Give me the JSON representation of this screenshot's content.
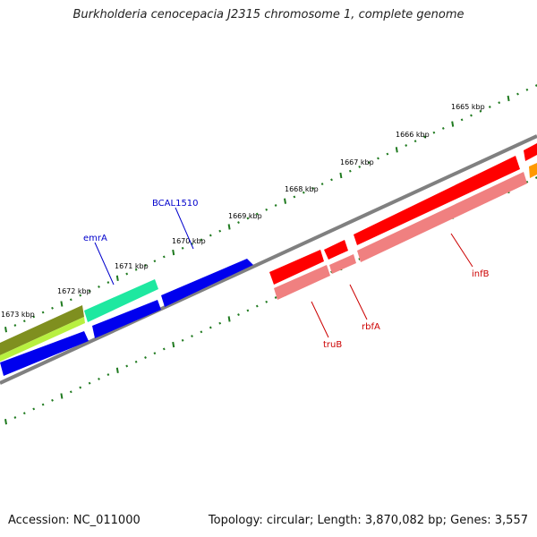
{
  "header": {
    "title": "Burkholderia cenocepacia J2315 chromosome 1, complete genome"
  },
  "footer": {
    "accession": "Accession: NC_011000",
    "topology": "Topology: circular; Length: 3,870,082 bp; Genes: 3,557"
  },
  "map": {
    "tick_labels": [
      "1665 kbp",
      "1666 kbp",
      "1667 kbp",
      "1668 kbp",
      "1669 kbp",
      "1670 kbp",
      "1671 kbp",
      "1672 kbp",
      "1673 kbp"
    ],
    "gene_labels": [
      "BCAL1510",
      "emrA",
      "infB",
      "rbfA",
      "truB"
    ],
    "colors": {
      "backbone": "#808080",
      "tick": "#1f7a1f",
      "blue_gene": "#0000ee",
      "teal_gene": "#1ee8a0",
      "olive_gene": "#7f8f1f",
      "lime_gene": "#b8f040",
      "red_gene": "#ff0000",
      "pink_gene": "#f08080",
      "orange_gene": "#ff9900",
      "label_blue": "#0000cc",
      "label_red": "#cc0000"
    }
  }
}
